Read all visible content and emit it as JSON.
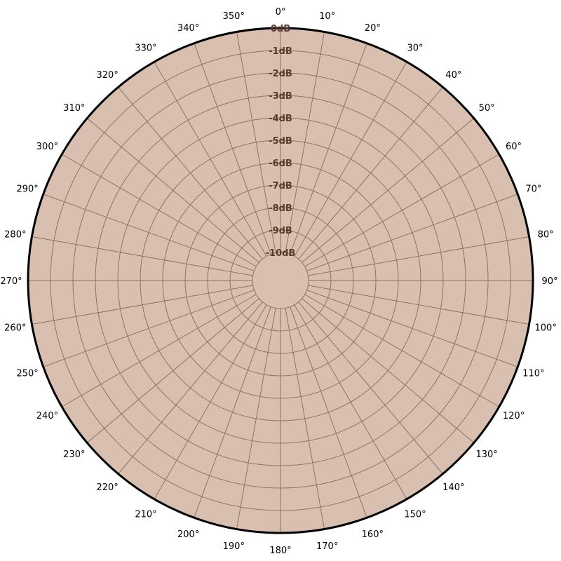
{
  "chart_data": {
    "type": "polar",
    "title": "",
    "angle_ticks": [
      "0°",
      "10°",
      "20°",
      "30°",
      "40°",
      "50°",
      "60°",
      "70°",
      "80°",
      "90°",
      "100°",
      "110°",
      "120°",
      "130°",
      "140°",
      "150°",
      "160°",
      "170°",
      "180°",
      "190°",
      "200°",
      "210°",
      "220°",
      "230°",
      "240°",
      "250°",
      "260°",
      "270°",
      "280°",
      "290°",
      "300°",
      "310°",
      "320°",
      "330°",
      "340°",
      "350°"
    ],
    "radial_ticks": [
      "0dB",
      "-1dB",
      "-2dB",
      "-3dB",
      "-4dB",
      "-5dB",
      "-6dB",
      "-7dB",
      "-8dB",
      "-9dB",
      "-10dB"
    ],
    "radial_range_db": [
      -10,
      0
    ],
    "angle_step_deg": 10,
    "direction": "clockwise",
    "zero_location": "top",
    "series": [],
    "grid": true,
    "colors": {
      "fill": "#d9bfb0",
      "grid": "#8c7366",
      "radial_label": "#5a3a2e",
      "outline": "#000000"
    }
  }
}
